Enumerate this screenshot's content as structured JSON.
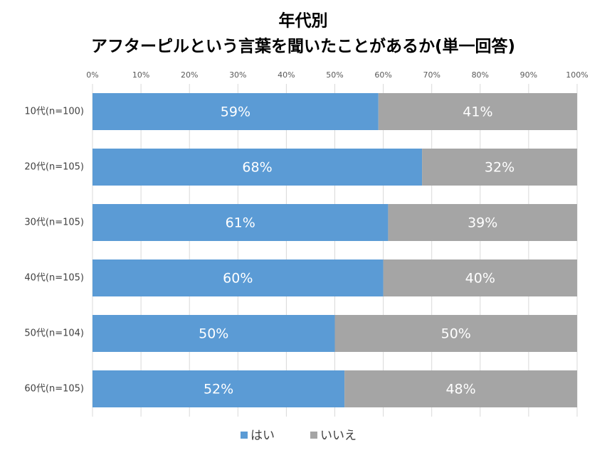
{
  "chart_data": {
    "type": "stacked-bar-horizontal",
    "title": [
      "年代別",
      "アフターピルという言葉を聞いたことがあるか(単一回答)"
    ],
    "categories": [
      "10代(n=100)",
      "20代(n=105)",
      "30代(n=105)",
      "40代(n=105)",
      "50代(n=104)",
      "60代(n=105)"
    ],
    "series": [
      {
        "name": "はい",
        "color": "#5b9bd5",
        "values": [
          59,
          68,
          61,
          60,
          50,
          52
        ],
        "value_labels": [
          "59%",
          "68%",
          "61%",
          "60%",
          "50%",
          "52%"
        ]
      },
      {
        "name": "いいえ",
        "color": "#a5a5a5",
        "values": [
          41,
          32,
          39,
          40,
          50,
          48
        ],
        "value_labels": [
          "41%",
          "32%",
          "39%",
          "40%",
          "50%",
          "48%"
        ]
      }
    ],
    "xlim": [
      0,
      100
    ],
    "xticks": [
      {
        "value": 0,
        "label": "0%"
      },
      {
        "value": 10,
        "label": "10%"
      },
      {
        "value": 20,
        "label": "20%"
      },
      {
        "value": 30,
        "label": "30%"
      },
      {
        "value": 40,
        "label": "40%"
      },
      {
        "value": 50,
        "label": "50%"
      },
      {
        "value": 60,
        "label": "60%"
      },
      {
        "value": 70,
        "label": "70%"
      },
      {
        "value": 80,
        "label": "80%"
      },
      {
        "value": 90,
        "label": "90%"
      },
      {
        "value": 100,
        "label": "100%"
      }
    ],
    "grid": true,
    "legend": "bottom"
  }
}
